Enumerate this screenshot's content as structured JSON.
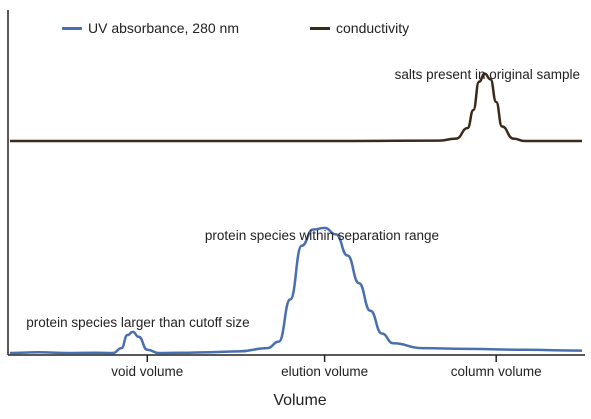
{
  "chart_data": {
    "type": "line",
    "title": "",
    "xlabel": "Volume",
    "ylabel": "",
    "grid": false,
    "legend_position": "top",
    "x_ticks": [
      {
        "label": "void volume",
        "x": 0.24
      },
      {
        "label": "elution volume",
        "x": 0.55
      },
      {
        "label": "column volume",
        "x": 0.85
      }
    ],
    "xlim": [
      0,
      1
    ],
    "series": [
      {
        "name": "UV absorbance, 280 nm",
        "color": "#4a6fb0",
        "baseline": 0.02,
        "points": [
          [
            0.0,
            0.02
          ],
          [
            0.05,
            0.025
          ],
          [
            0.1,
            0.02
          ],
          [
            0.15,
            0.022
          ],
          [
            0.18,
            0.02
          ],
          [
            0.195,
            0.05
          ],
          [
            0.205,
            0.13
          ],
          [
            0.215,
            0.15
          ],
          [
            0.225,
            0.12
          ],
          [
            0.24,
            0.04
          ],
          [
            0.26,
            0.02
          ],
          [
            0.3,
            0.022
          ],
          [
            0.35,
            0.025
          ],
          [
            0.4,
            0.03
          ],
          [
            0.45,
            0.05
          ],
          [
            0.47,
            0.09
          ],
          [
            0.49,
            0.35
          ],
          [
            0.51,
            0.68
          ],
          [
            0.53,
            0.78
          ],
          [
            0.55,
            0.79
          ],
          [
            0.57,
            0.75
          ],
          [
            0.59,
            0.62
          ],
          [
            0.61,
            0.45
          ],
          [
            0.63,
            0.28
          ],
          [
            0.65,
            0.14
          ],
          [
            0.67,
            0.08
          ],
          [
            0.72,
            0.05
          ],
          [
            0.8,
            0.045
          ],
          [
            0.9,
            0.04
          ],
          [
            1.0,
            0.035
          ]
        ]
      },
      {
        "name": "conductivity",
        "color": "#3b2a1a",
        "baseline": 0.02,
        "points": [
          [
            0.0,
            0.02
          ],
          [
            0.2,
            0.02
          ],
          [
            0.4,
            0.02
          ],
          [
            0.6,
            0.02
          ],
          [
            0.75,
            0.025
          ],
          [
            0.78,
            0.05
          ],
          [
            0.8,
            0.18
          ],
          [
            0.81,
            0.4
          ],
          [
            0.82,
            0.75
          ],
          [
            0.83,
            0.85
          ],
          [
            0.84,
            0.78
          ],
          [
            0.85,
            0.5
          ],
          [
            0.86,
            0.2
          ],
          [
            0.88,
            0.05
          ],
          [
            0.9,
            0.02
          ],
          [
            1.0,
            0.02
          ]
        ]
      }
    ],
    "annotations": [
      {
        "text": "salts present in original sample",
        "series": "conductivity",
        "x": 0.83
      },
      {
        "text": "protein species within separation range",
        "series": "UV absorbance, 280 nm",
        "x": 0.55
      },
      {
        "text": "protein species larger than cutoff size",
        "series": "UV absorbance, 280 nm",
        "x": 0.215
      }
    ]
  }
}
